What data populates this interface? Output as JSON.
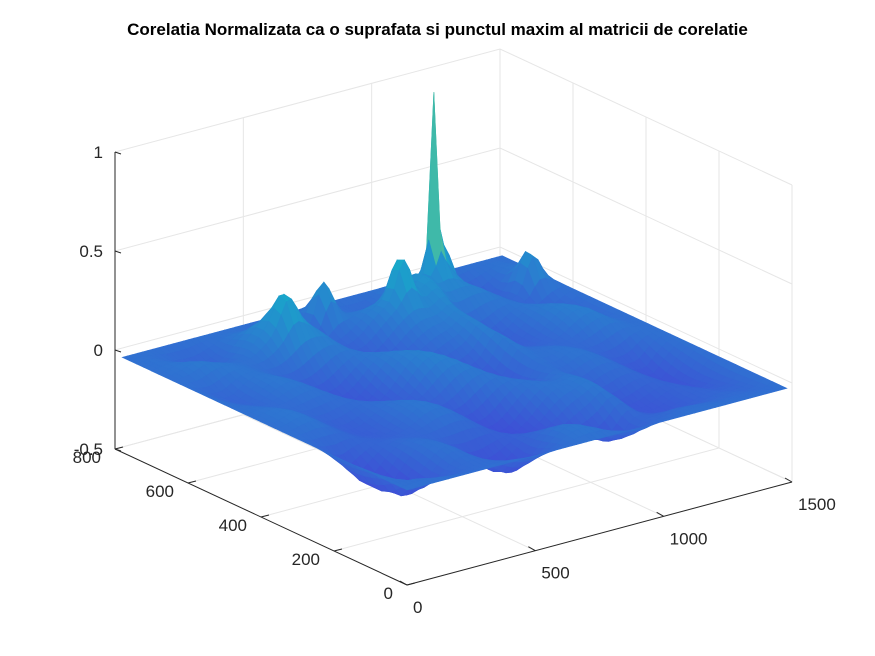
{
  "chart_data": {
    "type": "surface",
    "title": "Corelatia Normalizata ca o suprafata si punctul maxim al matricii de corelatie",
    "xlabel": "",
    "ylabel": "",
    "zlabel": "",
    "xlim": [
      0,
      1500
    ],
    "ylim": [
      0,
      800
    ],
    "zlim": [
      -0.5,
      1
    ],
    "x_ticks": [
      0,
      500,
      1000,
      1500
    ],
    "y_ticks": [
      0,
      200,
      400,
      600,
      800
    ],
    "z_ticks": [
      -0.5,
      0,
      0.5,
      1
    ],
    "x_tick_labels": [
      "0",
      "500",
      "1000",
      "1500"
    ],
    "y_tick_labels": [
      "0",
      "200",
      "400",
      "600",
      "800"
    ],
    "z_tick_labels": [
      "-0.5",
      "0",
      "0.5",
      "1"
    ],
    "grid": true,
    "colormap": "parula",
    "colors": {
      "low": "#3e4fd6",
      "mid": "#14b2c8",
      "high": "#f2d42a"
    },
    "surface_extent": {
      "x": [
        0,
        1480
      ],
      "y": [
        0,
        780
      ]
    },
    "peak": {
      "x": 1100,
      "y": 700,
      "z": 0.88
    },
    "secondary_peaks": [
      {
        "x": 700,
        "y": 720,
        "z": 0.25
      },
      {
        "x": 1150,
        "y": 720,
        "z": 0.3
      },
      {
        "x": 900,
        "y": 650,
        "z": 0.28
      },
      {
        "x": 1400,
        "y": 650,
        "z": 0.2
      },
      {
        "x": 450,
        "y": 650,
        "z": 0.18
      }
    ],
    "baseline_z": 0.0,
    "trough_min_z": -0.18
  }
}
